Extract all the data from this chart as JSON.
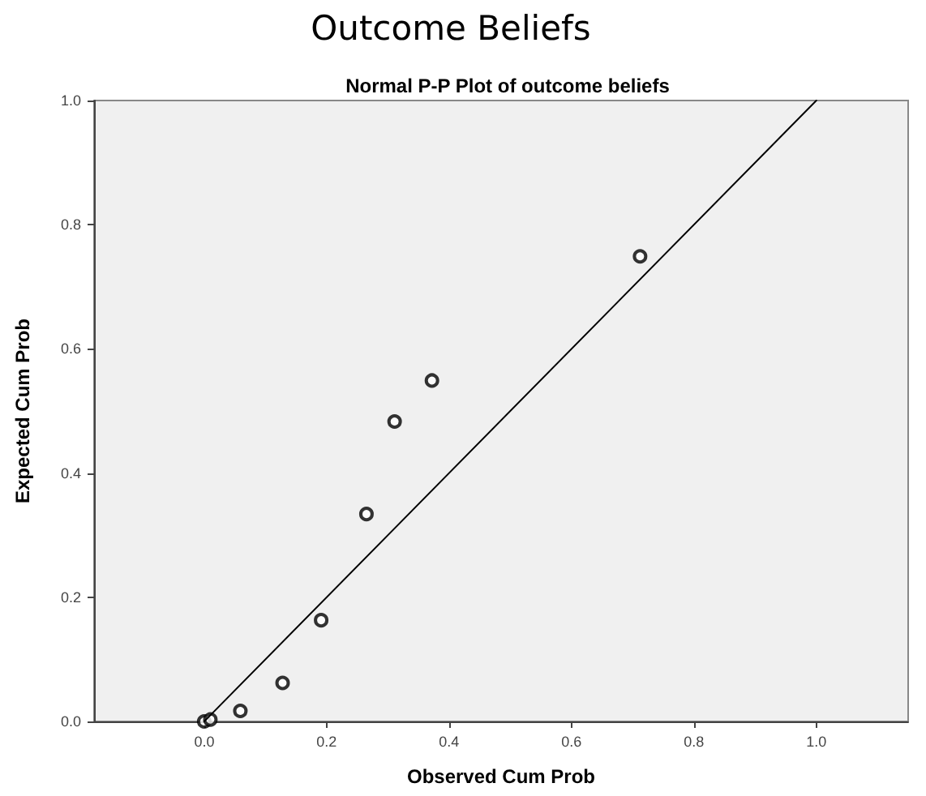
{
  "chart_data": {
    "type": "scatter",
    "title": "Outcome Beliefs",
    "subtitle": "Normal P-P Plot of outcome beliefs",
    "xlabel": "Observed Cum Prob",
    "ylabel": "Expected Cum Prob",
    "series": [
      {
        "color": "#000000",
        "marker": "circle",
        "x": [
          0.0,
          0.01,
          0.059,
          0.128,
          0.191,
          0.265,
          0.311,
          0.372,
          0.712
        ],
        "values": [
          0.0,
          0.003,
          0.017,
          0.062,
          0.163,
          0.334,
          0.483,
          0.549,
          0.749
        ]
      },
      {
        "type": "line",
        "color": "#000000",
        "marker": "none",
        "line_style": "solid",
        "x": [
          0,
          1
        ],
        "values": [
          0,
          1
        ]
      }
    ],
    "xlim": [
      -0.18,
      1.15
    ],
    "ylim": [
      0,
      1
    ],
    "xticks": [
      {
        "value": 0,
        "label": "0.0"
      },
      {
        "value": 0.2,
        "label": "0.2"
      },
      {
        "value": 0.4,
        "label": "0.4"
      },
      {
        "value": 0.6,
        "label": "0.6"
      },
      {
        "value": 0.8,
        "label": "0.8"
      },
      {
        "value": 1,
        "label": "1.0"
      }
    ],
    "yticks": [
      {
        "value": 0,
        "label": "0.0"
      },
      {
        "value": 0.2,
        "label": "0.2"
      },
      {
        "value": 0.4,
        "label": "0.4"
      },
      {
        "value": 0.6,
        "label": "0.6"
      },
      {
        "value": 0.8,
        "label": "0.8"
      },
      {
        "value": 1,
        "label": "1.0"
      }
    ],
    "grid": false
  }
}
